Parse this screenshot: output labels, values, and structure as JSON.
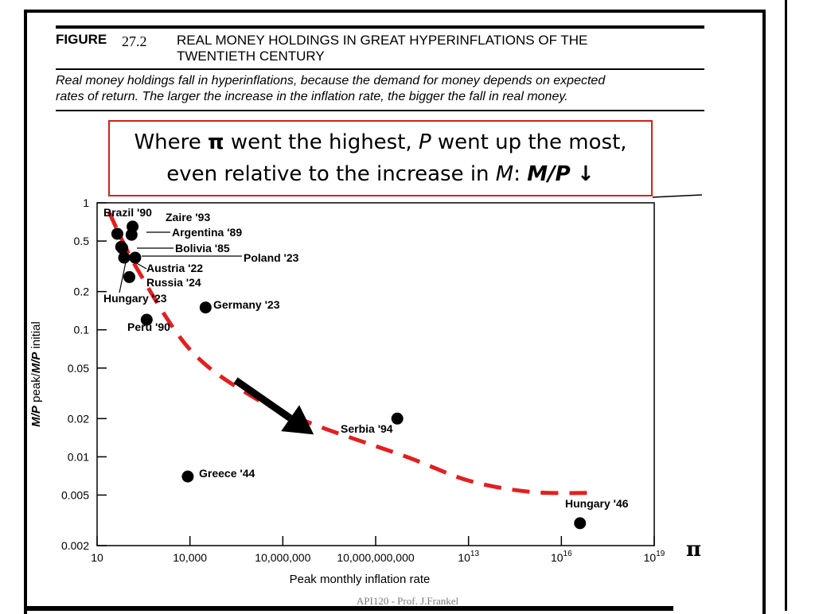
{
  "figure": {
    "label": "FIGURE",
    "number": "27.2",
    "title_line1": "REAL MONEY HOLDINGS IN GREAT HYPERINFLATIONS OF THE",
    "title_line2": "TWENTIETH CENTURY",
    "caption_line1": "Real money holdings fall in hyperinflations, because the demand for money depends on expected",
    "caption_line2": "rates of return. The larger the increase in the inflation rate, the bigger the fall in real money."
  },
  "annotation": {
    "line1_pre": "Where ",
    "line1_pi": "π",
    "line1_mid": " went the highest, ",
    "line1_p": "P",
    "line1_post": " went up the most,",
    "line2_pre": "even relative to the increase in ",
    "line2_m": "M",
    "line2_post": ":  ",
    "line2_ratio": "M/P",
    "line2_arrow": "↓",
    "border_color": "#d42020"
  },
  "pi_label": "π",
  "footer": "API120 - Prof. J.Frankel",
  "chart_data": {
    "type": "scatter",
    "xlabel": "Peak monthly inflation rate",
    "ylabel_parts": [
      "M/P",
      " peak/",
      "M/P",
      " initial"
    ],
    "x_scale": "log",
    "y_scale": "log",
    "xlim": [
      10,
      1e+19
    ],
    "ylim": [
      0.002,
      1
    ],
    "x_ticks": [
      {
        "value": 10,
        "label": "10"
      },
      {
        "value": 10000,
        "label": "10,000"
      },
      {
        "value": 10000000,
        "label": "10,000,000"
      },
      {
        "value": 10000000000,
        "label": "10,000,000,000"
      },
      {
        "value": 10000000000000.0,
        "label": "10",
        "sup": "13"
      },
      {
        "value": 1e+16,
        "label": "10",
        "sup": "16"
      },
      {
        "value": 1e+19,
        "label": "10",
        "sup": "19"
      }
    ],
    "y_ticks": [
      {
        "value": 1,
        "label": "1"
      },
      {
        "value": 0.5,
        "label": "0.5"
      },
      {
        "value": 0.2,
        "label": "0.2"
      },
      {
        "value": 0.1,
        "label": "0.1"
      },
      {
        "value": 0.05,
        "label": "0.05"
      },
      {
        "value": 0.02,
        "label": "0.02"
      },
      {
        "value": 0.01,
        "label": "0.01"
      },
      {
        "value": 0.005,
        "label": "0.005"
      },
      {
        "value": 0.002,
        "label": "0.002"
      }
    ],
    "points": [
      {
        "name": "Brazil '90",
        "x": 45,
        "y": 0.57
      },
      {
        "name": "Zaire '93",
        "x": 140,
        "y": 0.65
      },
      {
        "name": "Argentina '89",
        "x": 130,
        "y": 0.56
      },
      {
        "name": "Bolivia '85",
        "x": 60,
        "y": 0.45
      },
      {
        "name": "Poland '23",
        "x": 170,
        "y": 0.37
      },
      {
        "name": "Austria '22",
        "x": 75,
        "y": 0.37
      },
      {
        "name": "Russia '24",
        "x": 110,
        "y": 0.26
      },
      {
        "name": "Hungary '23",
        "x": 65,
        "y": 0.44
      },
      {
        "name": "Germany '23",
        "x": 32000,
        "y": 0.15
      },
      {
        "name": "Peru '90",
        "x": 400,
        "y": 0.12
      },
      {
        "name": "Serbia '94",
        "x": 50000000000.0,
        "y": 0.02
      },
      {
        "name": "Greece '44",
        "x": 8500,
        "y": 0.007
      },
      {
        "name": "Hungary '46",
        "x": 4e+16,
        "y": 0.003
      }
    ],
    "trend_curve": {
      "style": "dashed",
      "color": "#e02020",
      "points": [
        [
          24,
          0.85
        ],
        [
          200,
          0.3
        ],
        [
          10000,
          0.07
        ],
        [
          1000000,
          0.03
        ],
        [
          100000000.0,
          0.018
        ],
        [
          100000000000.0,
          0.01
        ],
        [
          10000000000000.0,
          0.0065
        ],
        [
          1000000000000000.0,
          0.0053
        ],
        [
          1e+17,
          0.0052
        ]
      ]
    },
    "arrow": {
      "from": [
        300000,
        0.04
      ],
      "to": [
        100000000.0,
        0.015
      ],
      "color": "#000000"
    }
  }
}
